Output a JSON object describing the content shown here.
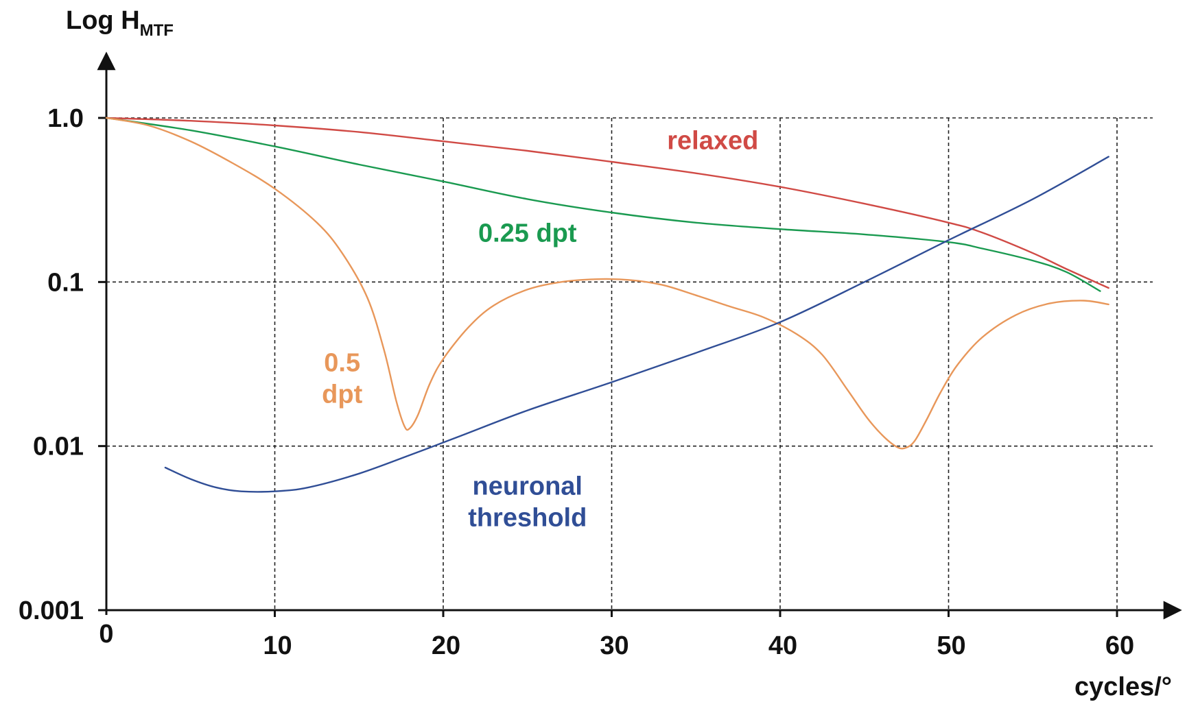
{
  "chart_data": {
    "type": "line",
    "title": "",
    "ylabel_main": "Log  H",
    "ylabel_sub": "MTF",
    "xlabel": "cycles/°",
    "x_scale": "linear",
    "y_scale": "log",
    "xlim": [
      0,
      60
    ],
    "ylim": [
      0.001,
      1.0
    ],
    "x_ticks": [
      0,
      10,
      20,
      30,
      40,
      50,
      60
    ],
    "x_tick_labels": [
      "0",
      "10",
      "20",
      "30",
      "40",
      "50",
      "60"
    ],
    "y_ticks": [
      0.001,
      0.01,
      0.1,
      1.0
    ],
    "y_tick_labels": [
      "0.001",
      "0.01",
      "0.1",
      "1.0"
    ],
    "grid": true,
    "series": [
      {
        "name": "relaxed",
        "label_lines": [
          "relaxed"
        ],
        "label_at": [
          36,
          0.73
        ],
        "color": "#d04a45",
        "x": [
          0,
          5,
          10,
          15,
          20,
          25,
          30,
          35,
          40,
          45,
          50,
          52,
          55,
          57,
          59.5
        ],
        "y": [
          1.0,
          0.96,
          0.9,
          0.82,
          0.72,
          0.63,
          0.54,
          0.46,
          0.38,
          0.3,
          0.23,
          0.2,
          0.15,
          0.12,
          0.092
        ]
      },
      {
        "name": "0.25 dpt",
        "label_lines": [
          "0.25 dpt"
        ],
        "label_at": [
          25,
          0.2
        ],
        "color": "#1a9a50",
        "x": [
          0,
          5,
          10,
          15,
          20,
          25,
          30,
          35,
          40,
          45,
          50,
          52,
          55,
          57,
          59
        ],
        "y": [
          1.0,
          0.84,
          0.67,
          0.52,
          0.41,
          0.32,
          0.265,
          0.23,
          0.21,
          0.195,
          0.175,
          0.16,
          0.135,
          0.115,
          0.088
        ]
      },
      {
        "name": "0.5 dpt",
        "label_lines": [
          "0.5",
          "dpt"
        ],
        "label_at": [
          14,
          0.026
        ],
        "color": "#e8975a",
        "x": [
          0,
          2.5,
          5,
          7.5,
          10,
          12.5,
          14,
          15.5,
          16.5,
          17.2,
          17.7,
          18,
          18.5,
          19.2,
          20,
          21.5,
          23,
          25,
          27,
          29,
          31,
          33,
          35,
          37,
          39,
          41,
          42.5,
          44,
          45.2,
          46.2,
          47,
          47.5,
          48,
          48.7,
          49.5,
          50.5,
          52,
          54,
          56,
          58,
          59.5
        ],
        "y": [
          1.0,
          0.9,
          0.72,
          0.53,
          0.37,
          0.23,
          0.15,
          0.08,
          0.038,
          0.019,
          0.0132,
          0.0128,
          0.0155,
          0.024,
          0.034,
          0.053,
          0.072,
          0.09,
          0.1,
          0.104,
          0.103,
          0.096,
          0.083,
          0.071,
          0.061,
          0.048,
          0.036,
          0.022,
          0.0147,
          0.0113,
          0.0098,
          0.0098,
          0.0108,
          0.0145,
          0.021,
          0.031,
          0.046,
          0.063,
          0.074,
          0.077,
          0.073
        ]
      },
      {
        "name": "neuronal threshold",
        "label_lines": [
          "neuronal",
          "threshold"
        ],
        "label_at": [
          25,
          0.0046
        ],
        "color": "#304e96",
        "x": [
          3.5,
          5,
          6.5,
          8,
          10,
          12,
          15,
          18,
          21,
          25,
          30,
          35,
          40,
          45,
          50,
          55,
          59.5
        ],
        "y": [
          0.0074,
          0.0063,
          0.0056,
          0.0053,
          0.0053,
          0.0056,
          0.0068,
          0.0088,
          0.0115,
          0.0165,
          0.0245,
          0.037,
          0.057,
          0.1,
          0.18,
          0.32,
          0.58
        ]
      }
    ]
  }
}
